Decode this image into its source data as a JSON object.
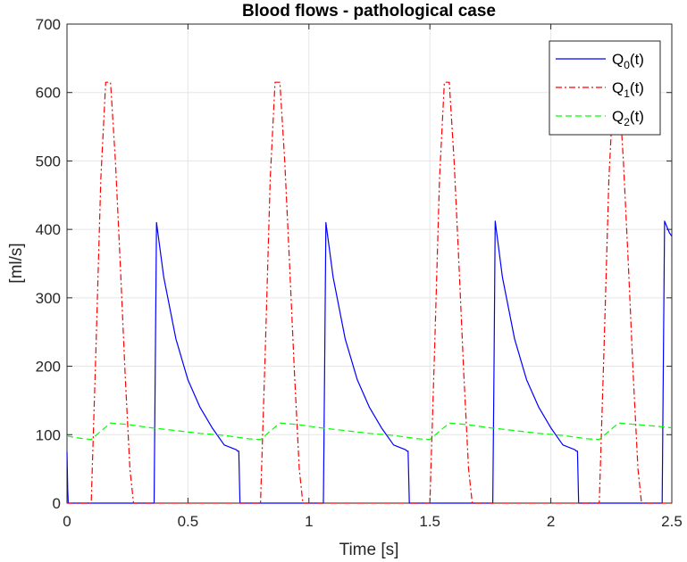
{
  "chart_data": {
    "type": "line",
    "title": "Blood flows - pathological case",
    "xlabel": "Time [s]",
    "ylabel": "[ml/s]",
    "xlim": [
      0,
      2.5
    ],
    "ylim": [
      0,
      700
    ],
    "xticks": [
      0,
      0.5,
      1,
      1.5,
      2,
      2.5
    ],
    "xtick_labels": [
      "0",
      "0.5",
      "1",
      "1.5",
      "2",
      "2.5"
    ],
    "yticks": [
      0,
      100,
      200,
      300,
      400,
      500,
      600,
      700
    ],
    "ytick_labels": [
      "0",
      "100",
      "200",
      "300",
      "400",
      "500",
      "600",
      "700"
    ],
    "grid": true,
    "legend_position": "top-right",
    "series": [
      {
        "name": "Q_0(t)",
        "color": "#0000ff",
        "style": "solid",
        "x": [
          0,
          0.003,
          0.005,
          0.36,
          0.365,
          0.37,
          0.4,
          0.45,
          0.5,
          0.55,
          0.6,
          0.65,
          0.7,
          0.705,
          0.71,
          0.715,
          1.06,
          1.065,
          1.07,
          1.1,
          1.15,
          1.2,
          1.25,
          1.3,
          1.35,
          1.4,
          1.405,
          1.41,
          1.415,
          1.76,
          1.765,
          1.77,
          1.8,
          1.85,
          1.9,
          1.95,
          2.0,
          2.05,
          2.1,
          2.105,
          2.11,
          2.115,
          2.46,
          2.465,
          2.47,
          2.49,
          2.5
        ],
        "y": [
          75,
          20,
          0,
          0,
          200,
          410,
          330,
          240,
          180,
          140,
          110,
          85,
          78,
          76,
          76,
          0,
          0,
          200,
          410,
          330,
          240,
          180,
          140,
          110,
          85,
          78,
          76,
          76,
          0,
          0,
          200,
          412,
          330,
          240,
          180,
          140,
          110,
          85,
          78,
          76,
          76,
          0,
          0,
          200,
          412,
          395,
          390
        ]
      },
      {
        "name": "Q_1(t)",
        "color": "#ff0000",
        "style": "dashdot",
        "x": [
          0,
          0.1,
          0.12,
          0.14,
          0.16,
          0.18,
          0.2,
          0.22,
          0.24,
          0.26,
          0.275,
          0.8,
          0.82,
          0.84,
          0.86,
          0.88,
          0.9,
          0.92,
          0.94,
          0.96,
          0.975,
          1.5,
          1.52,
          1.54,
          1.56,
          1.58,
          1.6,
          1.62,
          1.64,
          1.66,
          1.675,
          2.2,
          2.22,
          2.24,
          2.26,
          2.28,
          2.3,
          2.32,
          2.34,
          2.36,
          2.375,
          2.5
        ],
        "y": [
          0,
          0,
          230,
          475,
          615,
          615,
          500,
          350,
          190,
          50,
          0,
          0,
          230,
          475,
          615,
          615,
          500,
          350,
          190,
          50,
          0,
          0,
          230,
          475,
          615,
          615,
          500,
          350,
          190,
          50,
          0,
          0,
          230,
          475,
          615,
          615,
          500,
          350,
          190,
          50,
          0,
          0
        ]
      },
      {
        "name": "Q_2(t)",
        "color": "#00ff00",
        "style": "dashed",
        "x": [
          0,
          0.05,
          0.1,
          0.15,
          0.18,
          0.25,
          0.35,
          0.45,
          0.55,
          0.65,
          0.75,
          0.8,
          0.85,
          0.88,
          0.95,
          1.05,
          1.15,
          1.25,
          1.35,
          1.45,
          1.5,
          1.55,
          1.58,
          1.65,
          1.75,
          1.85,
          1.95,
          2.05,
          2.15,
          2.2,
          2.25,
          2.28,
          2.35,
          2.45,
          2.5
        ],
        "y": [
          98,
          95,
          93,
          108,
          117,
          115,
          110,
          106,
          102,
          99,
          94,
          93,
          108,
          117,
          115,
          110,
          106,
          102,
          99,
          94,
          93,
          108,
          117,
          115,
          110,
          106,
          102,
          99,
          94,
          93,
          108,
          117,
          115,
          112,
          110
        ]
      }
    ]
  }
}
